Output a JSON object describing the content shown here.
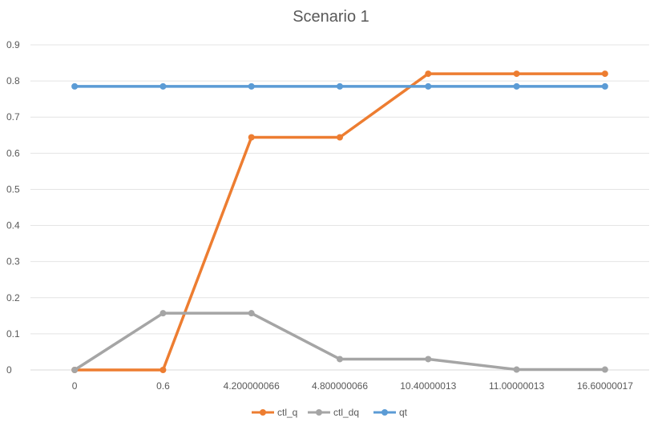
{
  "chart_data": {
    "type": "line",
    "title": "Scenario 1",
    "categories": [
      "0",
      "0.6",
      "4.200000066",
      "4.800000066",
      "10.40000013",
      "11.00000013",
      "16.60000017"
    ],
    "y_ticks": [
      "0",
      "0.1",
      "0.2",
      "0.3",
      "0.4",
      "0.5",
      "0.6",
      "0.7",
      "0.8",
      "0.9"
    ],
    "ylim": [
      0,
      0.9
    ],
    "grid": true,
    "legend_position": "bottom",
    "series": [
      {
        "name": "ctl_q",
        "color": "#ED7D31",
        "values": [
          0,
          0,
          0.644,
          0.644,
          0.82,
          0.82,
          0.82
        ]
      },
      {
        "name": "ctl_dq",
        "color": "#A5A5A5",
        "values": [
          0,
          0.157,
          0.157,
          0.03,
          0.03,
          0.001,
          0.001
        ]
      },
      {
        "name": "qt",
        "color": "#5B9BD5",
        "values": [
          0.785,
          0.785,
          0.785,
          0.785,
          0.785,
          0.785,
          0.785
        ]
      }
    ]
  }
}
